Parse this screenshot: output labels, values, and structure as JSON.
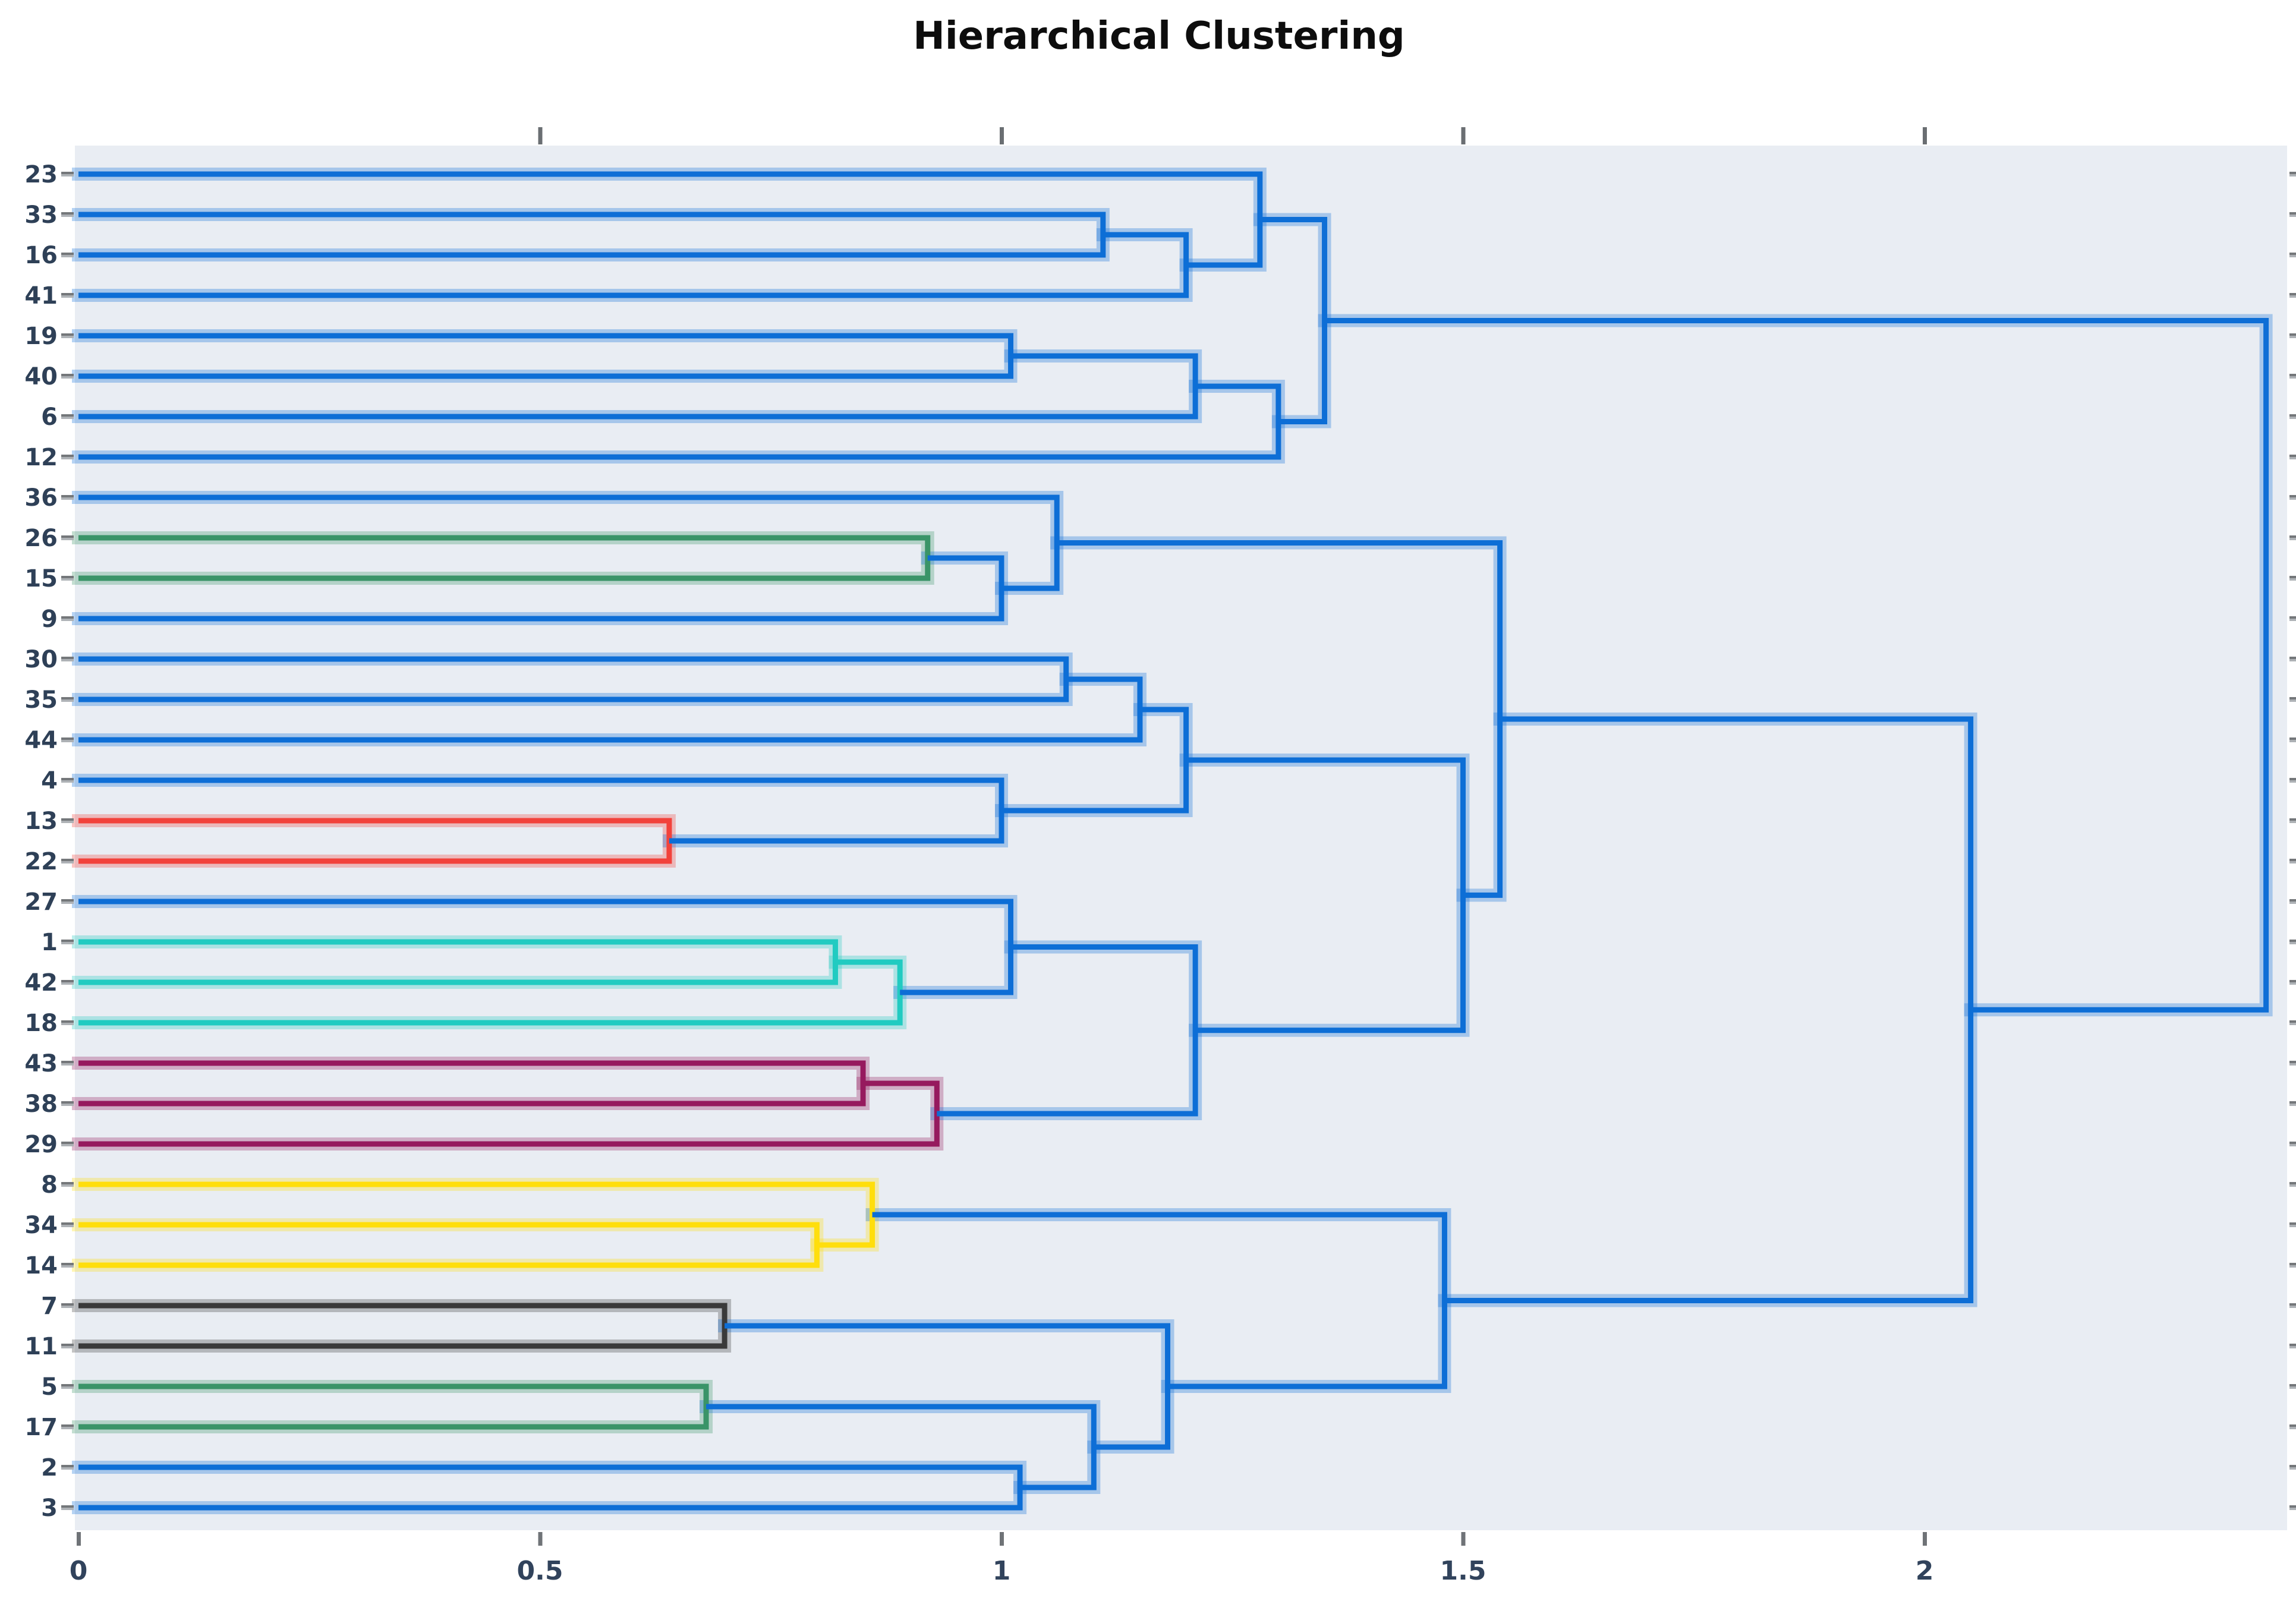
{
  "chart_data": {
    "type": "dendrogram",
    "title": "Hierarchical Clustering",
    "xlabel": "",
    "ylabel": "",
    "orientation": "left-to-right",
    "grid": "off",
    "legend": "none",
    "xlim": [
      0,
      2.395
    ],
    "axis_ticks": [
      {
        "value": 0,
        "label": "0"
      },
      {
        "value": 0.5,
        "label": "0.5"
      },
      {
        "value": 1,
        "label": "1"
      },
      {
        "value": 1.5,
        "label": "1.5"
      },
      {
        "value": 2,
        "label": "2"
      }
    ],
    "top_tick_values": [
      0.5,
      1,
      1.5,
      2
    ],
    "leaves": [
      "23",
      "33",
      "16",
      "41",
      "19",
      "40",
      "6",
      "12",
      "36",
      "26",
      "15",
      "9",
      "30",
      "35",
      "44",
      "4",
      "13",
      "22",
      "27",
      "1",
      "42",
      "18",
      "43",
      "38",
      "29",
      "8",
      "34",
      "14",
      "7",
      "11",
      "5",
      "17",
      "2",
      "3"
    ],
    "merges": [
      {
        "left": "33",
        "right": "16",
        "distance": 1.11,
        "color": "blue"
      },
      {
        "left": "#0",
        "right": "41",
        "distance": 1.2,
        "color": "blue"
      },
      {
        "left": "23",
        "right": "#1",
        "distance": 1.28,
        "color": "blue"
      },
      {
        "left": "19",
        "right": "40",
        "distance": 1.01,
        "color": "blue"
      },
      {
        "left": "#3",
        "right": "6",
        "distance": 1.21,
        "color": "blue"
      },
      {
        "left": "#4",
        "right": "12",
        "distance": 1.3,
        "color": "blue"
      },
      {
        "left": "#2",
        "right": "#5",
        "distance": 1.35,
        "color": "blue"
      },
      {
        "left": "26",
        "right": "15",
        "distance": 0.92,
        "color": "green"
      },
      {
        "left": "#7",
        "right": "9",
        "distance": 1.0,
        "color": "blue"
      },
      {
        "left": "36",
        "right": "#8",
        "distance": 1.06,
        "color": "blue"
      },
      {
        "left": "30",
        "right": "35",
        "distance": 1.07,
        "color": "blue"
      },
      {
        "left": "#10",
        "right": "44",
        "distance": 1.15,
        "color": "blue"
      },
      {
        "left": "13",
        "right": "22",
        "distance": 0.64,
        "color": "red"
      },
      {
        "left": "4",
        "right": "#12",
        "distance": 1.0,
        "color": "blue"
      },
      {
        "left": "#11",
        "right": "#13",
        "distance": 1.2,
        "color": "blue"
      },
      {
        "left": "1",
        "right": "42",
        "distance": 0.82,
        "color": "cyan"
      },
      {
        "left": "#15",
        "right": "18",
        "distance": 0.89,
        "color": "cyan"
      },
      {
        "left": "27",
        "right": "#16",
        "distance": 1.01,
        "color": "blue"
      },
      {
        "left": "43",
        "right": "38",
        "distance": 0.85,
        "color": "maroon"
      },
      {
        "left": "#18",
        "right": "29",
        "distance": 0.93,
        "color": "maroon"
      },
      {
        "left": "#17",
        "right": "#19",
        "distance": 1.21,
        "color": "blue"
      },
      {
        "left": "#14",
        "right": "#20",
        "distance": 1.5,
        "color": "blue"
      },
      {
        "left": "#9",
        "right": "#21",
        "distance": 1.54,
        "color": "blue"
      },
      {
        "left": "34",
        "right": "14",
        "distance": 0.8,
        "color": "yellow"
      },
      {
        "left": "8",
        "right": "#23",
        "distance": 0.86,
        "color": "yellow"
      },
      {
        "left": "7",
        "right": "11",
        "distance": 0.7,
        "color": "black"
      },
      {
        "left": "5",
        "right": "17",
        "distance": 0.68,
        "color": "green"
      },
      {
        "left": "2",
        "right": "3",
        "distance": 1.02,
        "color": "blue"
      },
      {
        "left": "#26",
        "right": "#27",
        "distance": 1.1,
        "color": "blue"
      },
      {
        "left": "#25",
        "right": "#28",
        "distance": 1.18,
        "color": "blue"
      },
      {
        "left": "#24",
        "right": "#29",
        "distance": 1.48,
        "color": "blue"
      },
      {
        "left": "#22",
        "right": "#30",
        "distance": 2.05,
        "color": "blue"
      },
      {
        "left": "#6",
        "right": "#31",
        "distance": 2.37,
        "color": "blue"
      }
    ],
    "palette": {
      "blue": "#0d6ed6",
      "green": "#3a9468",
      "red": "#f2423b",
      "cyan": "#21cbc1",
      "maroon": "#961a5e",
      "yellow": "#ffde0c",
      "black": "#3a3a3a"
    },
    "theme": {
      "page_bg": "#ffffff",
      "plot_bg": "#e9edf3",
      "title_color": "#0d0d0d",
      "leaf_label_color": "#2e4057",
      "axis_label_color": "#31435c",
      "leaf_tick_dark": "#74777a",
      "leaf_tick_light": "#aeb2b6",
      "top_tick_color": "#6a6e72",
      "bottom_tick_color": "#6f7377",
      "halo_opacity": 0.3
    }
  }
}
